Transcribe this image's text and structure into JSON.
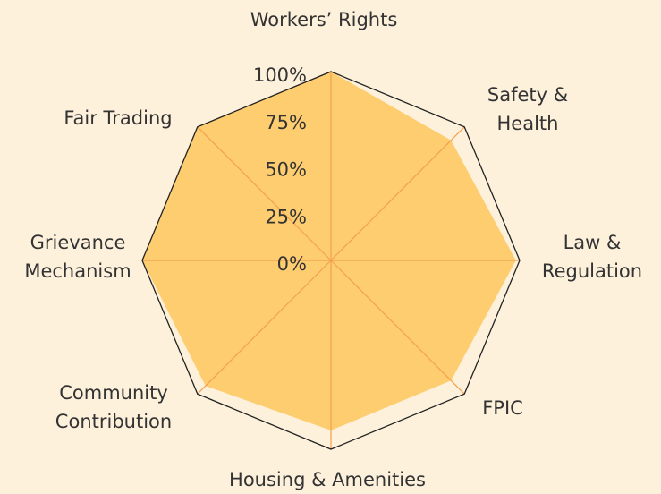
{
  "chart_data": {
    "type": "radar",
    "categories": [
      "Workers’ Rights",
      "Safety &\nHealth",
      "Law &\nRegulation",
      "FPIC",
      "Housing & Amenities",
      "Community\nContribution",
      "Grievance\nMechanism",
      "Fair Trading"
    ],
    "values": [
      100,
      90,
      98,
      90,
      90,
      94,
      100,
      100
    ],
    "color": "#fdcd70",
    "ylim": [
      0,
      100
    ],
    "yticks": [
      {
        "value": 0,
        "label": "0%"
      },
      {
        "value": 25,
        "label": "25%"
      },
      {
        "value": 50,
        "label": "50%"
      },
      {
        "value": 75,
        "label": "75%"
      },
      {
        "value": 100,
        "label": "100%"
      }
    ]
  }
}
